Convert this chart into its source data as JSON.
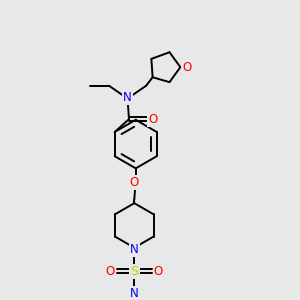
{
  "background_color": "#e8e8e8",
  "bond_color": "#000000",
  "atom_colors": {
    "N": "#0000ff",
    "O": "#ff0000",
    "S": "#cccc00",
    "C": "#000000"
  },
  "figsize": [
    3.0,
    3.0
  ],
  "dpi": 100,
  "xlim": [
    0,
    10
  ],
  "ylim": [
    0,
    10
  ]
}
